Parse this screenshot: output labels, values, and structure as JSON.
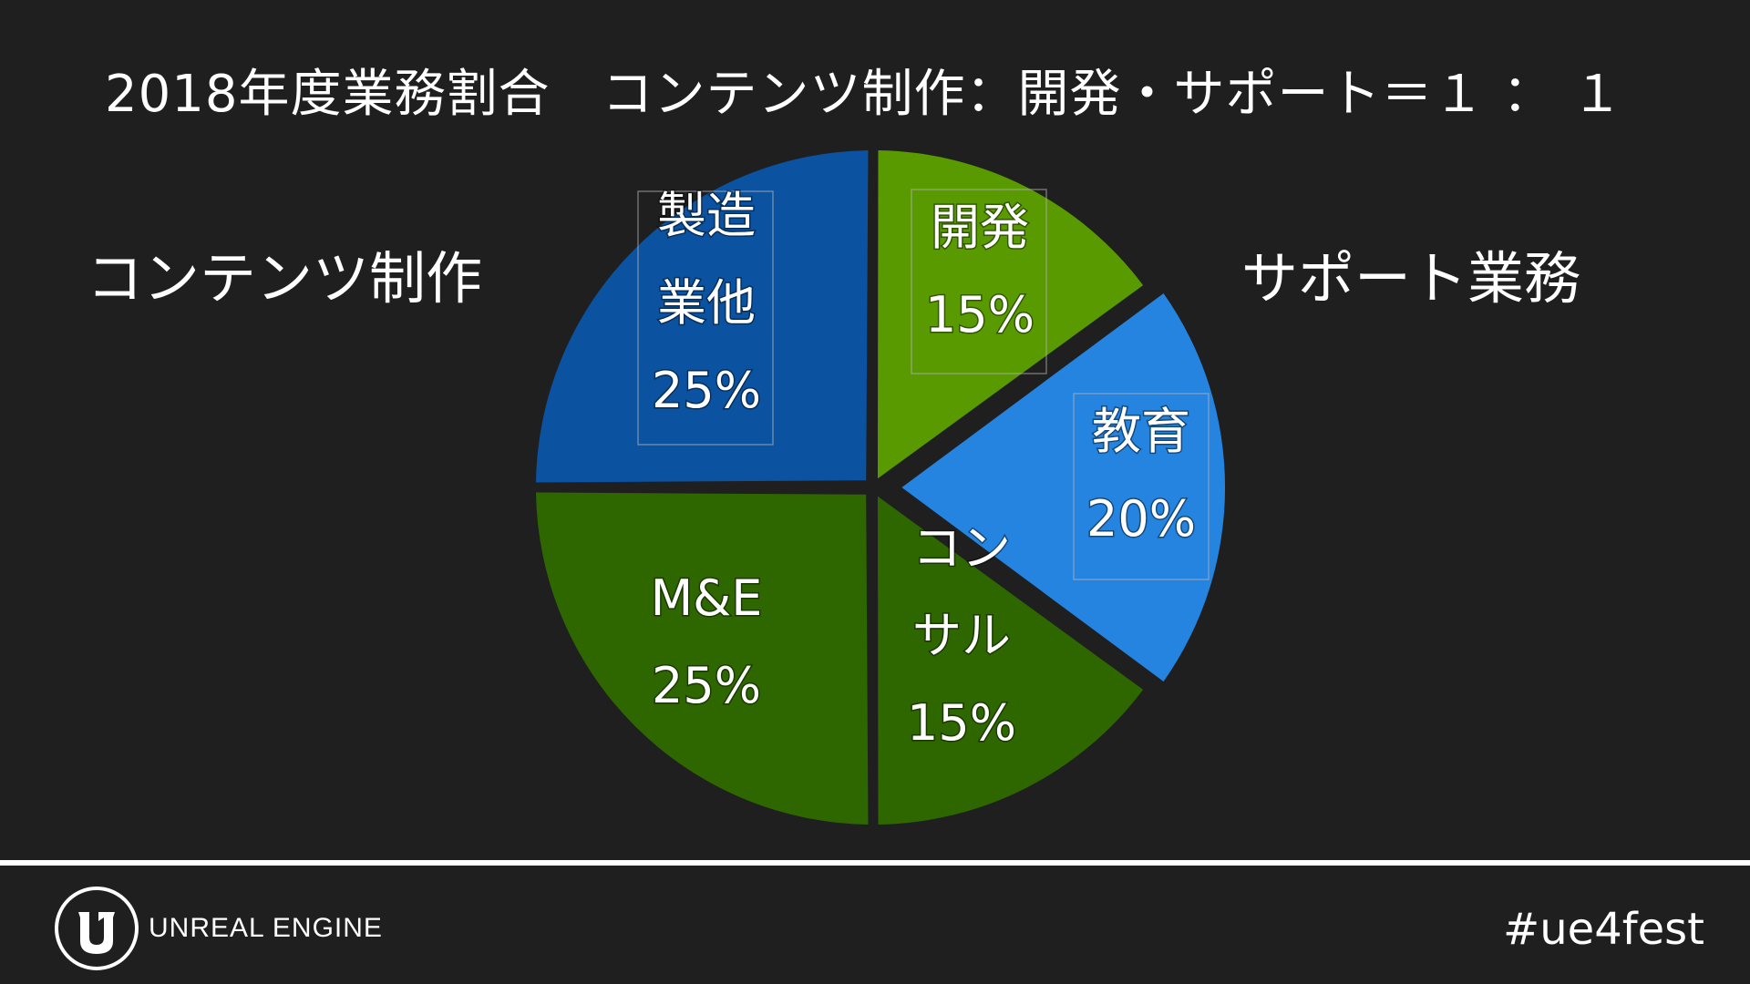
{
  "slide": {
    "title": "2018年度業務割合　コンテンツ制作：開発・サポート＝１ ： １",
    "left_group_label": "コンテンツ制作",
    "right_group_label": "サポート業務"
  },
  "footer": {
    "brand": "UNREAL ENGINE",
    "hashtag": "#ue4fest"
  },
  "chart_data": {
    "type": "pie",
    "start_angle_deg": 0,
    "direction": "clockwise",
    "slices": [
      {
        "label_lines": [
          "開発"
        ],
        "percent_label": "15%",
        "value": 15,
        "color": "#589a00",
        "exploded": false,
        "label_box": true
      },
      {
        "label_lines": [
          "教育"
        ],
        "percent_label": "20%",
        "value": 20,
        "color": "#2484e0",
        "exploded": true,
        "label_box": true
      },
      {
        "label_lines": [
          "コン",
          "サル"
        ],
        "percent_label": "15%",
        "value": 15,
        "color": "#2e6600",
        "exploded": false,
        "label_box": false
      },
      {
        "label_lines": [
          "M&E"
        ],
        "percent_label": "25%",
        "value": 25,
        "color": "#2e6600",
        "exploded": false,
        "label_box": false
      },
      {
        "label_lines": [
          "製造",
          "業他"
        ],
        "percent_label": "25%",
        "value": 25,
        "color": "#0b52a0",
        "exploded": false,
        "label_box": true
      }
    ]
  }
}
